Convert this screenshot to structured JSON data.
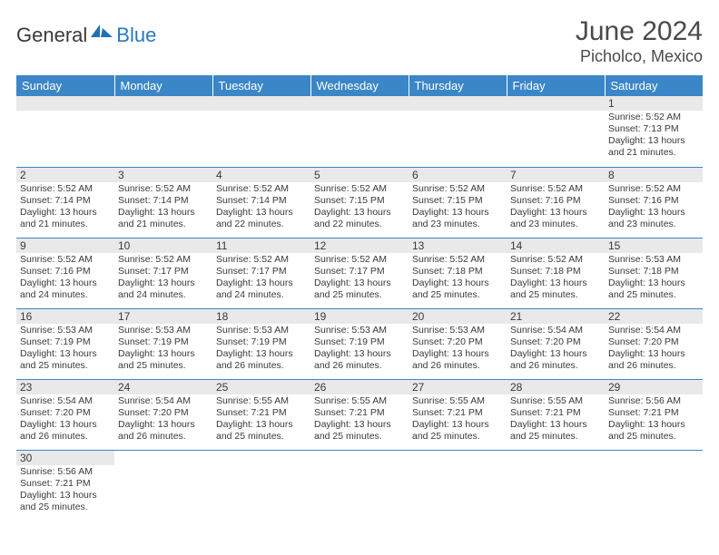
{
  "logo": {
    "general": "General",
    "blue": "Blue"
  },
  "title": "June 2024",
  "location": "Picholco, Mexico",
  "colors": {
    "header_bg": "#3b86c6",
    "header_text": "#ffffff",
    "daynum_bg": "#e9e9e9",
    "border": "#3b86c6",
    "text": "#3a3a3a",
    "logo_blue": "#2a78c0"
  },
  "day_headers": [
    "Sunday",
    "Monday",
    "Tuesday",
    "Wednesday",
    "Thursday",
    "Friday",
    "Saturday"
  ],
  "weeks": [
    [
      null,
      null,
      null,
      null,
      null,
      null,
      {
        "n": "1",
        "sr": "5:52 AM",
        "ss": "7:13 PM",
        "dl": "13 hours and 21 minutes."
      }
    ],
    [
      {
        "n": "2",
        "sr": "5:52 AM",
        "ss": "7:14 PM",
        "dl": "13 hours and 21 minutes."
      },
      {
        "n": "3",
        "sr": "5:52 AM",
        "ss": "7:14 PM",
        "dl": "13 hours and 21 minutes."
      },
      {
        "n": "4",
        "sr": "5:52 AM",
        "ss": "7:14 PM",
        "dl": "13 hours and 22 minutes."
      },
      {
        "n": "5",
        "sr": "5:52 AM",
        "ss": "7:15 PM",
        "dl": "13 hours and 22 minutes."
      },
      {
        "n": "6",
        "sr": "5:52 AM",
        "ss": "7:15 PM",
        "dl": "13 hours and 23 minutes."
      },
      {
        "n": "7",
        "sr": "5:52 AM",
        "ss": "7:16 PM",
        "dl": "13 hours and 23 minutes."
      },
      {
        "n": "8",
        "sr": "5:52 AM",
        "ss": "7:16 PM",
        "dl": "13 hours and 23 minutes."
      }
    ],
    [
      {
        "n": "9",
        "sr": "5:52 AM",
        "ss": "7:16 PM",
        "dl": "13 hours and 24 minutes."
      },
      {
        "n": "10",
        "sr": "5:52 AM",
        "ss": "7:17 PM",
        "dl": "13 hours and 24 minutes."
      },
      {
        "n": "11",
        "sr": "5:52 AM",
        "ss": "7:17 PM",
        "dl": "13 hours and 24 minutes."
      },
      {
        "n": "12",
        "sr": "5:52 AM",
        "ss": "7:17 PM",
        "dl": "13 hours and 25 minutes."
      },
      {
        "n": "13",
        "sr": "5:52 AM",
        "ss": "7:18 PM",
        "dl": "13 hours and 25 minutes."
      },
      {
        "n": "14",
        "sr": "5:52 AM",
        "ss": "7:18 PM",
        "dl": "13 hours and 25 minutes."
      },
      {
        "n": "15",
        "sr": "5:53 AM",
        "ss": "7:18 PM",
        "dl": "13 hours and 25 minutes."
      }
    ],
    [
      {
        "n": "16",
        "sr": "5:53 AM",
        "ss": "7:19 PM",
        "dl": "13 hours and 25 minutes."
      },
      {
        "n": "17",
        "sr": "5:53 AM",
        "ss": "7:19 PM",
        "dl": "13 hours and 25 minutes."
      },
      {
        "n": "18",
        "sr": "5:53 AM",
        "ss": "7:19 PM",
        "dl": "13 hours and 26 minutes."
      },
      {
        "n": "19",
        "sr": "5:53 AM",
        "ss": "7:19 PM",
        "dl": "13 hours and 26 minutes."
      },
      {
        "n": "20",
        "sr": "5:53 AM",
        "ss": "7:20 PM",
        "dl": "13 hours and 26 minutes."
      },
      {
        "n": "21",
        "sr": "5:54 AM",
        "ss": "7:20 PM",
        "dl": "13 hours and 26 minutes."
      },
      {
        "n": "22",
        "sr": "5:54 AM",
        "ss": "7:20 PM",
        "dl": "13 hours and 26 minutes."
      }
    ],
    [
      {
        "n": "23",
        "sr": "5:54 AM",
        "ss": "7:20 PM",
        "dl": "13 hours and 26 minutes."
      },
      {
        "n": "24",
        "sr": "5:54 AM",
        "ss": "7:20 PM",
        "dl": "13 hours and 26 minutes."
      },
      {
        "n": "25",
        "sr": "5:55 AM",
        "ss": "7:21 PM",
        "dl": "13 hours and 25 minutes."
      },
      {
        "n": "26",
        "sr": "5:55 AM",
        "ss": "7:21 PM",
        "dl": "13 hours and 25 minutes."
      },
      {
        "n": "27",
        "sr": "5:55 AM",
        "ss": "7:21 PM",
        "dl": "13 hours and 25 minutes."
      },
      {
        "n": "28",
        "sr": "5:55 AM",
        "ss": "7:21 PM",
        "dl": "13 hours and 25 minutes."
      },
      {
        "n": "29",
        "sr": "5:56 AM",
        "ss": "7:21 PM",
        "dl": "13 hours and 25 minutes."
      }
    ],
    [
      {
        "n": "30",
        "sr": "5:56 AM",
        "ss": "7:21 PM",
        "dl": "13 hours and 25 minutes."
      },
      null,
      null,
      null,
      null,
      null,
      null
    ]
  ],
  "labels": {
    "sunrise": "Sunrise:",
    "sunset": "Sunset:",
    "daylight": "Daylight:"
  }
}
